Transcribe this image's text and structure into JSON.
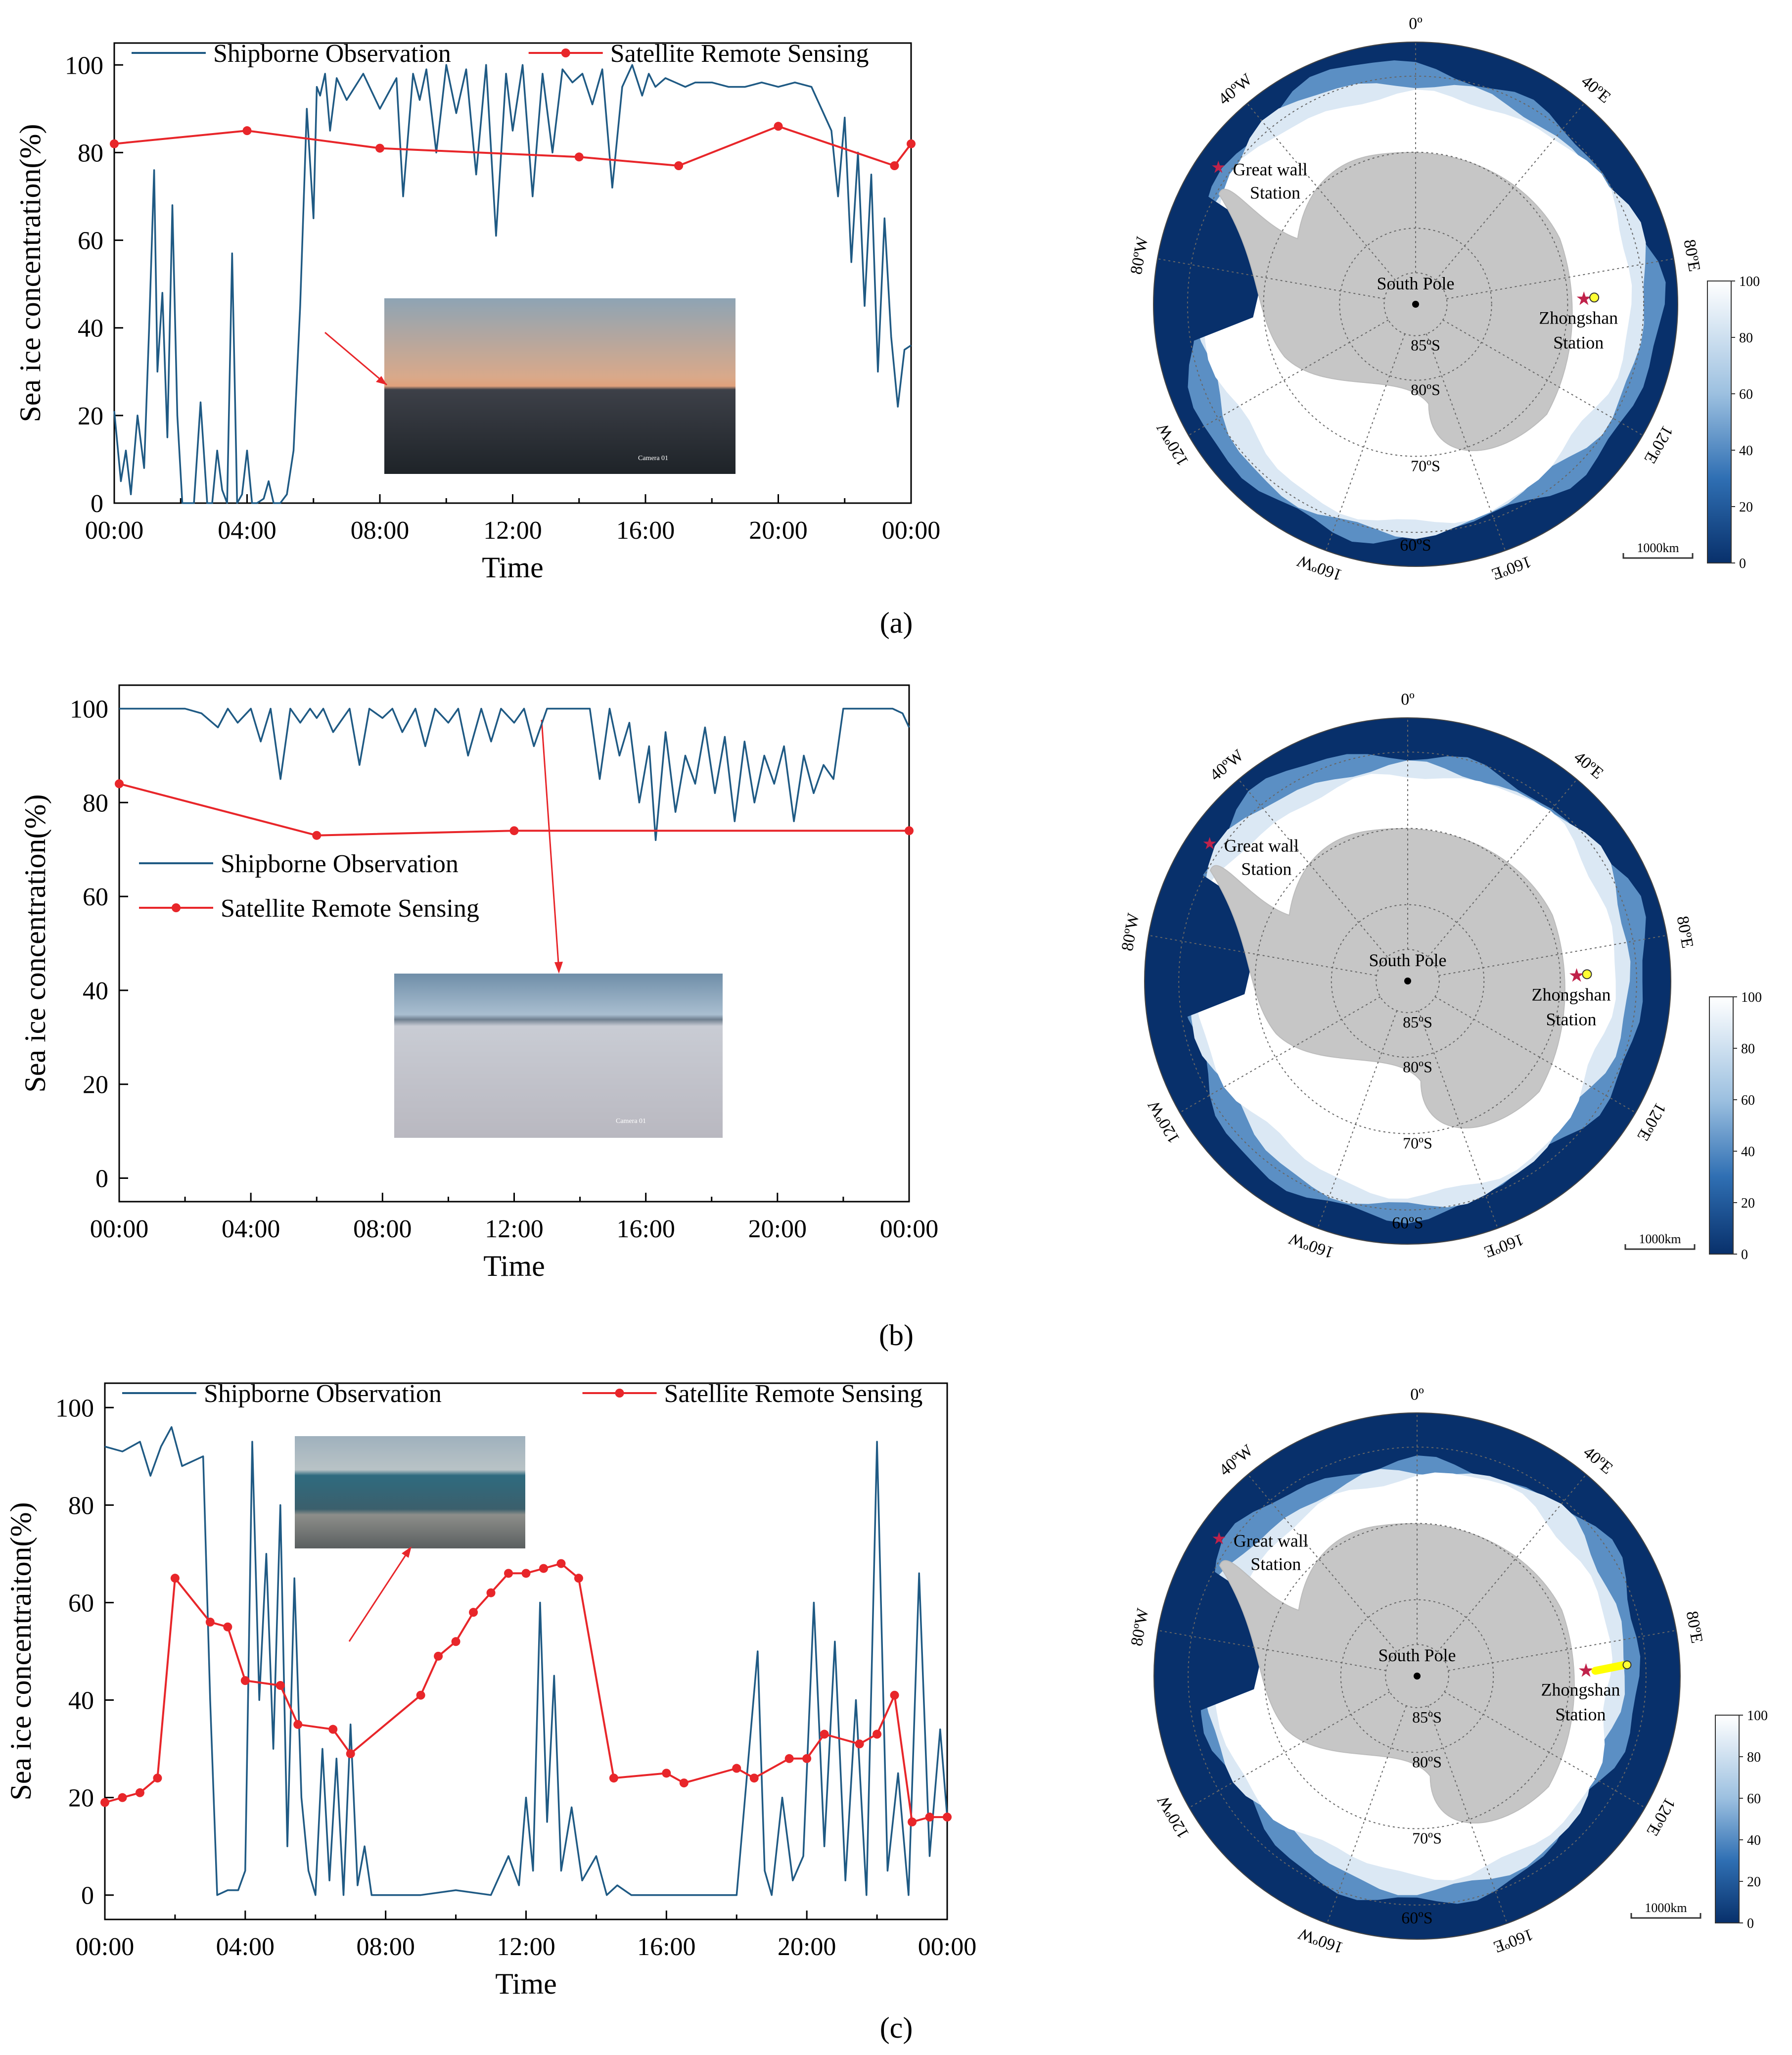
{
  "colors": {
    "shipborne": "#1f5a84",
    "satellite": "#e8262a",
    "ocean": "#08306b",
    "land": "#c6c6c6",
    "ice": "#ffffff"
  },
  "panels": [
    {
      "caption": "(a)",
      "photo_label": "Camera 01",
      "map": {
        "lon_labels": [
          "0º",
          "40ºE",
          "80ºE",
          "120ºE",
          "160ºE",
          "60ºS",
          "160ºW",
          "120ºW",
          "80ºW",
          "40ºW"
        ],
        "lat_labels": [
          "85ºS",
          "80ºS",
          "70ºS"
        ],
        "pole_label": "South Pole",
        "station1": "Great wall\nStation",
        "station2": "Zhongshan\nStation",
        "scalebar": "1000km",
        "colorbar_ticks": [
          "100",
          "80",
          "60",
          "40",
          "20",
          "0"
        ]
      }
    },
    {
      "caption": "(b)",
      "photo_label": "Camera 01",
      "map": {
        "lon_labels": [
          "0º",
          "40ºE",
          "80ºE",
          "120ºE",
          "160ºE",
          "60ºS",
          "160ºW",
          "120ºW",
          "80ºW",
          "40ºW"
        ],
        "lat_labels": [
          "85ºS",
          "80ºS",
          "70ºS"
        ],
        "pole_label": "South Pole",
        "station1": "Great wall\nStation",
        "station2": "Zhongshan\nStation",
        "scalebar": "1000km",
        "colorbar_ticks": [
          "100",
          "80",
          "60",
          "40",
          "20",
          "0"
        ]
      }
    },
    {
      "caption": "(c)",
      "photo_label": "",
      "map": {
        "lon_labels": [
          "0º",
          "40ºE",
          "80ºE",
          "120ºE",
          "160ºE",
          "60ºS",
          "160ºW",
          "120ºW",
          "80ºW",
          "40ºW"
        ],
        "lat_labels": [
          "85ºS",
          "80ºS",
          "70ºS"
        ],
        "pole_label": "South Pole",
        "station1": "Great wall\nStation",
        "station2": "Zhongshan\nStation",
        "scalebar": "1000km",
        "colorbar_ticks": [
          "100",
          "80",
          "60",
          "40",
          "20",
          "0"
        ]
      }
    }
  ],
  "chart_data": [
    {
      "type": "line",
      "xlabel": "Time",
      "ylabel": "Sea ice concentration(%)",
      "ylim": [
        0,
        105
      ],
      "xlim": [
        0,
        24
      ],
      "x_ticks": [
        "00:00",
        "04:00",
        "08:00",
        "12:00",
        "16:00",
        "20:00",
        "00:00"
      ],
      "y_ticks": [
        "0",
        "20",
        "40",
        "60",
        "80",
        "100"
      ],
      "legend_position": "top",
      "series": [
        {
          "name": "Shipborne Observation",
          "x": [
            0,
            0.2,
            0.35,
            0.5,
            0.7,
            0.9,
            1.05,
            1.2,
            1.3,
            1.45,
            1.6,
            1.75,
            1.9,
            2.05,
            2.2,
            2.4,
            2.6,
            2.8,
            2.95,
            3.1,
            3.25,
            3.4,
            3.55,
            3.7,
            3.85,
            4.0,
            4.15,
            4.3,
            4.5,
            4.65,
            4.8,
            5.0,
            5.2,
            5.4,
            5.6,
            5.8,
            6.0,
            6.1,
            6.2,
            6.35,
            6.5,
            6.7,
            7.0,
            7.5,
            8.0,
            8.5,
            8.7,
            9.0,
            9.2,
            9.4,
            9.7,
            10.0,
            10.3,
            10.6,
            10.9,
            11.2,
            11.5,
            11.8,
            12.0,
            12.3,
            12.6,
            12.9,
            13.2,
            13.5,
            13.8,
            14.1,
            14.4,
            14.7,
            15.0,
            15.3,
            15.6,
            15.9,
            16.1,
            16.3,
            16.6,
            16.9,
            17.2,
            17.5,
            18.0,
            18.5,
            19.0,
            19.5,
            20.0,
            20.5,
            21.0,
            21.3,
            21.6,
            21.8,
            22.0,
            22.2,
            22.4,
            22.6,
            22.8,
            23.0,
            23.2,
            23.4,
            23.6,
            23.8,
            24.0
          ],
          "values": [
            21,
            5,
            12,
            2,
            20,
            8,
            40,
            76,
            30,
            48,
            15,
            68,
            20,
            0,
            0,
            0,
            23,
            0,
            0,
            12,
            3,
            0,
            57,
            0,
            2,
            12,
            0,
            0,
            1,
            5,
            0,
            0,
            2,
            12,
            45,
            90,
            65,
            95,
            93,
            98,
            85,
            97,
            92,
            98,
            90,
            97,
            70,
            98,
            92,
            99,
            80,
            100,
            89,
            99,
            75,
            100,
            61,
            98,
            85,
            100,
            70,
            98,
            80,
            99,
            96,
            98,
            91,
            99,
            72,
            95,
            100,
            93,
            98,
            95,
            97,
            96,
            95,
            96,
            96,
            95,
            95,
            96,
            95,
            96,
            95,
            90,
            85,
            70,
            88,
            55,
            80,
            45,
            75,
            30,
            65,
            38,
            22,
            35,
            36
          ],
          "color": "#1f5a84"
        },
        {
          "name": "Satellite Remote Sensing",
          "x": [
            0,
            4,
            8,
            14,
            17,
            20,
            23.5,
            24
          ],
          "values": [
            82,
            85,
            81,
            79,
            77,
            86,
            77,
            82
          ],
          "color": "#e8262a"
        }
      ]
    },
    {
      "type": "line",
      "xlabel": "Time",
      "ylabel": "Sea ice concentration(%)",
      "ylim": [
        -5,
        105
      ],
      "xlim": [
        0,
        24
      ],
      "x_ticks": [
        "00:00",
        "04:00",
        "08:00",
        "12:00",
        "16:00",
        "20:00",
        "00:00"
      ],
      "y_ticks": [
        "0",
        "20",
        "40",
        "60",
        "80",
        "100"
      ],
      "legend_position": "center-left",
      "series": [
        {
          "name": "Shipborne Observation",
          "x": [
            0,
            1,
            2,
            2.5,
            3,
            3.3,
            3.6,
            4,
            4.3,
            4.6,
            4.9,
            5.2,
            5.5,
            5.8,
            6.0,
            6.2,
            6.5,
            7,
            7.3,
            7.6,
            8,
            8.3,
            8.6,
            9,
            9.3,
            9.6,
            10,
            10.3,
            10.6,
            11,
            11.3,
            11.6,
            12,
            12.3,
            12.6,
            13,
            13.3,
            13.6,
            14,
            14.3,
            14.6,
            14.9,
            15.2,
            15.5,
            15.8,
            16.1,
            16.3,
            16.6,
            16.9,
            17.2,
            17.5,
            17.8,
            18.1,
            18.4,
            18.7,
            19,
            19.3,
            19.6,
            19.9,
            20.2,
            20.5,
            20.8,
            21.1,
            21.4,
            21.7,
            22,
            22.5,
            23,
            23.5,
            23.8,
            24
          ],
          "values": [
            100,
            100,
            100,
            99,
            96,
            100,
            97,
            100,
            93,
            100,
            85,
            100,
            97,
            100,
            98,
            100,
            95,
            100,
            88,
            100,
            98,
            100,
            95,
            100,
            92,
            100,
            97,
            100,
            90,
            100,
            93,
            100,
            97,
            100,
            92,
            100,
            100,
            100,
            100,
            100,
            85,
            100,
            90,
            97,
            80,
            92,
            72,
            95,
            78,
            90,
            84,
            96,
            82,
            94,
            76,
            93,
            80,
            90,
            84,
            92,
            76,
            90,
            82,
            88,
            85,
            100,
            100,
            100,
            100,
            99,
            96
          ],
          "color": "#1f5a84"
        },
        {
          "name": "Satellite Remote Sensing",
          "x": [
            0,
            6,
            12,
            24
          ],
          "values": [
            84,
            73,
            74,
            74
          ],
          "color": "#e8262a"
        }
      ]
    },
    {
      "type": "line",
      "xlabel": "Time",
      "ylabel": "Sea ice concentraiton(%)",
      "ylim": [
        -5,
        105
      ],
      "xlim": [
        0,
        24
      ],
      "x_ticks": [
        "00:00",
        "04:00",
        "08:00",
        "12:00",
        "16:00",
        "20:00",
        "00:00"
      ],
      "y_ticks": [
        "0",
        "20",
        "40",
        "60",
        "80",
        "100"
      ],
      "legend_position": "top",
      "series": [
        {
          "name": "Shipborne Observation",
          "x": [
            0,
            0.5,
            1.0,
            1.3,
            1.6,
            1.9,
            2.2,
            2.5,
            2.8,
            3.0,
            3.2,
            3.5,
            3.8,
            4.0,
            4.2,
            4.4,
            4.6,
            4.8,
            5.0,
            5.2,
            5.4,
            5.6,
            5.8,
            6.0,
            6.2,
            6.4,
            6.6,
            6.8,
            7.0,
            7.2,
            7.4,
            7.6,
            8.0,
            9.0,
            10.0,
            11.0,
            11.5,
            11.8,
            12.0,
            12.2,
            12.4,
            12.6,
            12.8,
            13.0,
            13.3,
            13.6,
            14.0,
            14.3,
            14.6,
            15.0,
            16.0,
            17.0,
            18.0,
            18.6,
            18.8,
            19.0,
            19.3,
            19.6,
            19.9,
            20.2,
            20.5,
            20.8,
            21.1,
            21.4,
            21.7,
            22.0,
            22.3,
            22.6,
            22.9,
            23.2,
            23.5,
            23.8,
            24.0
          ],
          "values": [
            92,
            91,
            93,
            86,
            92,
            96,
            88,
            89,
            90,
            40,
            0,
            1,
            1,
            5,
            93,
            40,
            70,
            30,
            80,
            10,
            65,
            20,
            5,
            0,
            30,
            3,
            28,
            0,
            35,
            2,
            10,
            0,
            0,
            0,
            1,
            0,
            8,
            2,
            20,
            5,
            60,
            15,
            45,
            5,
            18,
            3,
            8,
            0,
            2,
            0,
            0,
            0,
            0,
            50,
            5,
            0,
            20,
            3,
            8,
            60,
            10,
            52,
            3,
            40,
            0,
            93,
            5,
            25,
            0,
            66,
            8,
            34,
            16
          ],
          "color": "#1f5a84"
        },
        {
          "name": "Satellite Remote Sensing",
          "x": [
            0,
            0.5,
            1.0,
            1.5,
            2.0,
            3.0,
            3.5,
            4.0,
            5.0,
            5.5,
            6.5,
            7.0,
            9.0,
            9.5,
            10.0,
            10.5,
            11.0,
            11.5,
            12.0,
            12.5,
            13.0,
            13.5,
            14.5,
            16.0,
            16.5,
            18.0,
            18.5,
            19.5,
            20.0,
            20.5,
            21.5,
            22.0,
            22.5,
            23.0,
            23.5,
            24.0
          ],
          "values": [
            19,
            20,
            21,
            24,
            65,
            56,
            55,
            44,
            43,
            35,
            34,
            29,
            41,
            49,
            52,
            58,
            62,
            66,
            66,
            67,
            68,
            65,
            24,
            25,
            23,
            26,
            24,
            28,
            28,
            33,
            31,
            33,
            41,
            15,
            16,
            16
          ],
          "color": "#e8262a"
        }
      ]
    }
  ]
}
